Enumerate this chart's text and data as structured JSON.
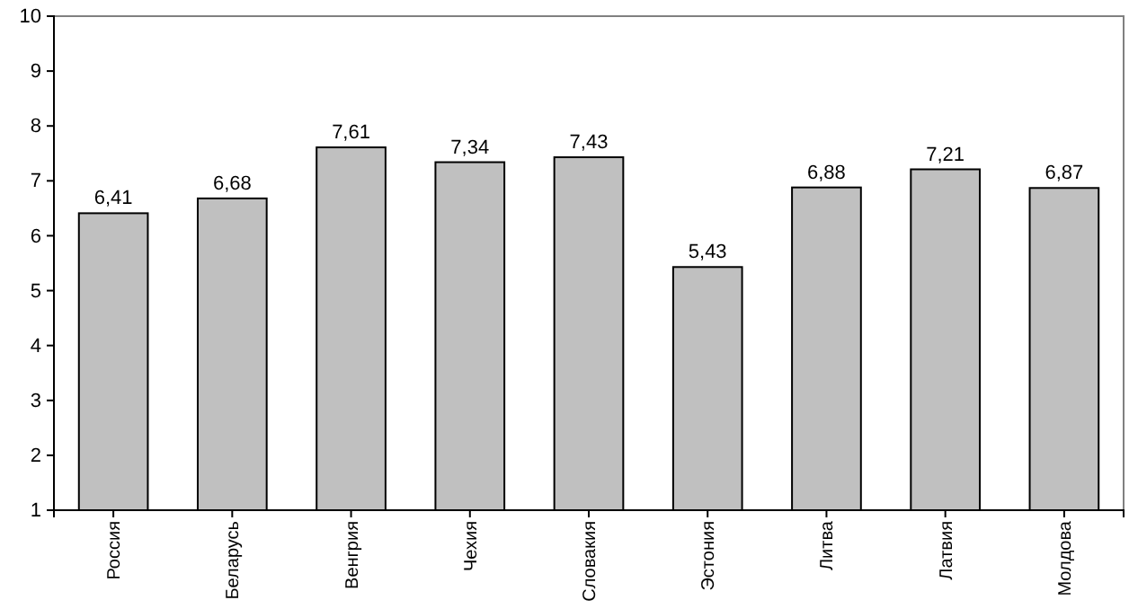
{
  "chart_data": {
    "type": "bar",
    "categories": [
      "Россия",
      "Беларусь",
      "Венгрия",
      "Чехия",
      "Словакия",
      "Эстония",
      "Литва",
      "Латвия",
      "Молдова"
    ],
    "values": [
      6.41,
      6.68,
      7.61,
      7.34,
      7.43,
      5.43,
      6.88,
      7.21,
      6.87
    ],
    "value_labels": [
      "6,41",
      "6,68",
      "7,61",
      "7,34",
      "7,43",
      "5,43",
      "6,88",
      "7,21",
      "6,87"
    ],
    "color": "#c0c0c0",
    "ylim": [
      1,
      10
    ],
    "yticks": [
      1,
      2,
      3,
      4,
      5,
      6,
      7,
      8,
      9,
      10
    ],
    "grid": false
  }
}
